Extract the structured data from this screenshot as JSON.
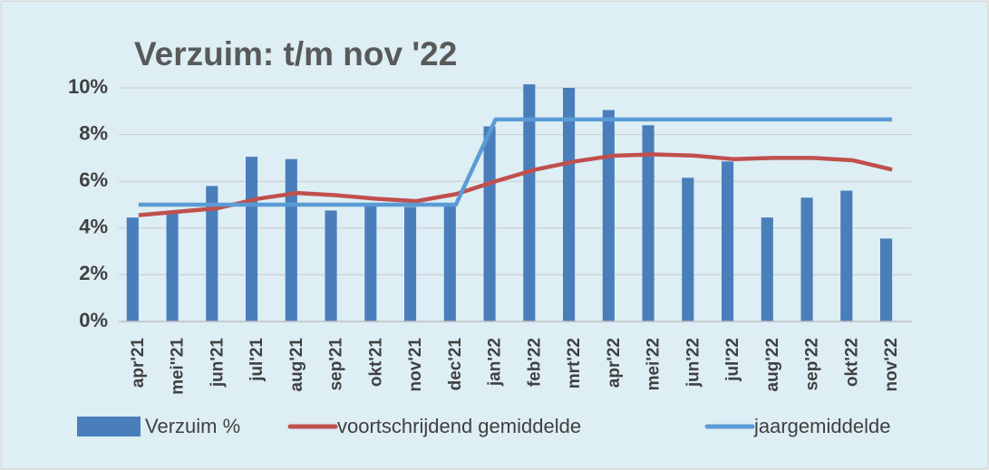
{
  "chart_data": {
    "type": "bar_line",
    "title": "Verzuim:  t/m  nov '22",
    "categories": [
      "apr'21",
      "mei''21",
      "jun'21",
      "jul'21",
      "aug'21",
      "sep'21",
      "okt'21",
      "nov'21",
      "dec'21",
      "jan'22",
      "feb'22",
      "mrt'22",
      "apr'22",
      "mei'22",
      "jun'22",
      "jul'22",
      "aug'22",
      "sep'22",
      "okt'22",
      "nov'22"
    ],
    "series": [
      {
        "name": "Verzuim %",
        "type": "bar",
        "color": "#4a7ebb",
        "values": [
          4.45,
          4.7,
          5.8,
          7.05,
          6.95,
          4.75,
          5.0,
          4.9,
          4.95,
          8.35,
          10.15,
          10.0,
          9.05,
          8.4,
          6.15,
          6.85,
          4.45,
          5.3,
          5.6,
          3.55
        ]
      },
      {
        "name": "voortschrijdend gemiddelde",
        "type": "line",
        "color": "#c0504d",
        "values": [
          4.55,
          4.7,
          4.85,
          5.25,
          5.5,
          5.4,
          5.25,
          5.15,
          5.45,
          6.0,
          6.5,
          6.85,
          7.1,
          7.15,
          7.1,
          6.95,
          7.0,
          7.0,
          6.9,
          6.5
        ]
      },
      {
        "name": "jaargemiddelde",
        "type": "line",
        "color": "#5b9bd5",
        "values": [
          5.0,
          5.0,
          5.0,
          5.0,
          5.0,
          5.0,
          5.0,
          5.0,
          5.0,
          8.65,
          8.65,
          8.65,
          8.65,
          8.65,
          8.65,
          8.65,
          8.65,
          8.65,
          8.65,
          8.65
        ]
      }
    ],
    "ylim": [
      0,
      10
    ],
    "yticks": [
      {
        "value": 0,
        "label": "0%"
      },
      {
        "value": 2,
        "label": "2%"
      },
      {
        "value": 4,
        "label": "4%"
      },
      {
        "value": 6,
        "label": "6%"
      },
      {
        "value": 8,
        "label": "8%"
      },
      {
        "value": 10,
        "label": "10%"
      }
    ],
    "grid": true
  }
}
